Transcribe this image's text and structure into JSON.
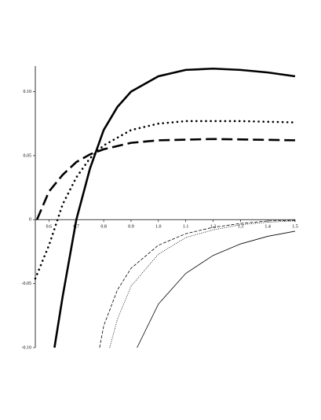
{
  "chart_data": {
    "type": "line",
    "xlim": [
      0.55,
      1.5
    ],
    "ylim": [
      -0.1,
      0.12
    ],
    "xticks": [
      0.6,
      0.7,
      0.8,
      0.9,
      {
        "value": 1.0,
        "label": "1.0"
      },
      1.1,
      1.2,
      1.3,
      1.4,
      1.5
    ],
    "yticks": [
      {
        "value": -0.1,
        "label": "-0.10"
      },
      -0.05,
      0,
      0.05,
      {
        "value": 0.1,
        "label": "0.10"
      }
    ],
    "series": [
      {
        "color": "#000000",
        "weight": "thick",
        "dash": "solid",
        "x": [
          0.62,
          0.65,
          0.7,
          0.75,
          0.8,
          0.85,
          0.9,
          1.0,
          1.1,
          1.2,
          1.3,
          1.4,
          1.5
        ],
        "values": [
          -0.1,
          -0.06,
          0,
          0.04,
          0.07,
          0.088,
          0.1,
          0.112,
          0.117,
          0.118,
          0.117,
          0.115,
          0.112
        ]
      },
      {
        "color": "#000000",
        "weight": "thick",
        "dash": "dotted",
        "x": [
          0.55,
          0.6,
          0.65,
          0.7,
          0.75,
          0.8,
          0.9,
          1.0,
          1.1,
          1.2,
          1.3,
          1.5
        ],
        "values": [
          -0.046,
          -0.02,
          0.012,
          0.033,
          0.048,
          0.058,
          0.07,
          0.075,
          0.077,
          0.077,
          0.077,
          0.076
        ]
      },
      {
        "color": "#000000",
        "weight": "thick",
        "dash": "dashed",
        "x": [
          0.556,
          0.6,
          0.65,
          0.7,
          0.75,
          0.8,
          0.9,
          1.0,
          1.2,
          1.5
        ],
        "values": [
          0,
          0.022,
          0.035,
          0.045,
          0.051,
          0.055,
          0.06,
          0.062,
          0.063,
          0.062
        ]
      },
      {
        "color": "#000000",
        "weight": "thin",
        "dash": "dashed",
        "x": [
          0.785,
          0.8,
          0.85,
          0.9,
          1.0,
          1.1,
          1.2,
          1.3,
          1.4,
          1.5
        ],
        "values": [
          -0.1,
          -0.083,
          -0.055,
          -0.038,
          -0.02,
          -0.011,
          -0.006,
          -0.003,
          -0.001,
          -0.0005
        ]
      },
      {
        "color": "#000000",
        "weight": "thin",
        "dash": "dotted",
        "x": [
          0.822,
          0.85,
          0.9,
          1.0,
          1.1,
          1.2,
          1.3,
          1.4,
          1.5
        ],
        "values": [
          -0.1,
          -0.078,
          -0.052,
          -0.027,
          -0.014,
          -0.008,
          -0.004,
          -0.002,
          -0.001
        ]
      },
      {
        "color": "#000000",
        "weight": "thin",
        "dash": "solid",
        "x": [
          0.922,
          1.0,
          1.1,
          1.2,
          1.3,
          1.4,
          1.5
        ],
        "values": [
          -0.1,
          -0.066,
          -0.042,
          -0.028,
          -0.019,
          -0.013,
          -0.009
        ]
      }
    ]
  }
}
